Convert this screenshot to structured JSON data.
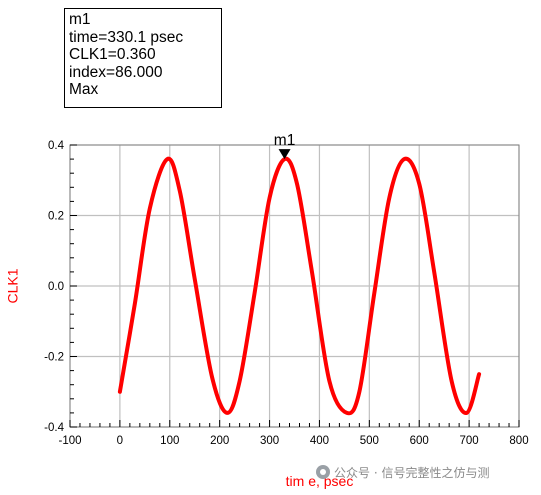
{
  "marker_box": {
    "lines": [
      "m1",
      "time=330.1 psec",
      "CLK1=0.360",
      "index=86.000",
      "Max"
    ]
  },
  "watermark": {
    "text": "公众号 · 信号完整性之仿与测"
  },
  "colors": {
    "series": "#ff0000",
    "grid": "#c0c0c0",
    "axis_label": "#ff0000"
  },
  "chart_data": {
    "type": "line",
    "xlabel": "tim e, psec",
    "ylabel": "CLK1",
    "xlim": [
      -100,
      800
    ],
    "ylim": [
      -0.4,
      0.4
    ],
    "xticks": [
      -100,
      0,
      100,
      200,
      300,
      400,
      500,
      600,
      700,
      800
    ],
    "xtick_labels": [
      "-100",
      "0",
      "100",
      "200",
      "300",
      "400",
      "500",
      "600",
      "700",
      "800"
    ],
    "yticks": [
      -0.4,
      -0.2,
      0.0,
      0.2,
      0.4
    ],
    "ytick_labels": [
      "-0.4",
      "-0.2",
      "0.0",
      "0.2",
      "0.4"
    ],
    "grid": true,
    "series": [
      {
        "color": "#ff0000",
        "x": [
          0,
          30,
          60,
          95,
          120,
          150,
          185,
          215,
          240,
          270,
          300,
          330,
          355,
          385,
          420,
          455,
          480,
          510,
          540,
          570,
          600,
          630,
          665,
          695,
          720
        ],
        "y": [
          -0.3,
          -0.05,
          0.22,
          0.36,
          0.27,
          0.02,
          -0.26,
          -0.36,
          -0.27,
          -0.02,
          0.25,
          0.36,
          0.29,
          0.04,
          -0.27,
          -0.36,
          -0.3,
          -0.02,
          0.25,
          0.36,
          0.29,
          0.04,
          -0.27,
          -0.36,
          -0.25
        ]
      }
    ],
    "markers": [
      {
        "label": "m1",
        "x": 330.1,
        "y": 0.36
      }
    ]
  }
}
